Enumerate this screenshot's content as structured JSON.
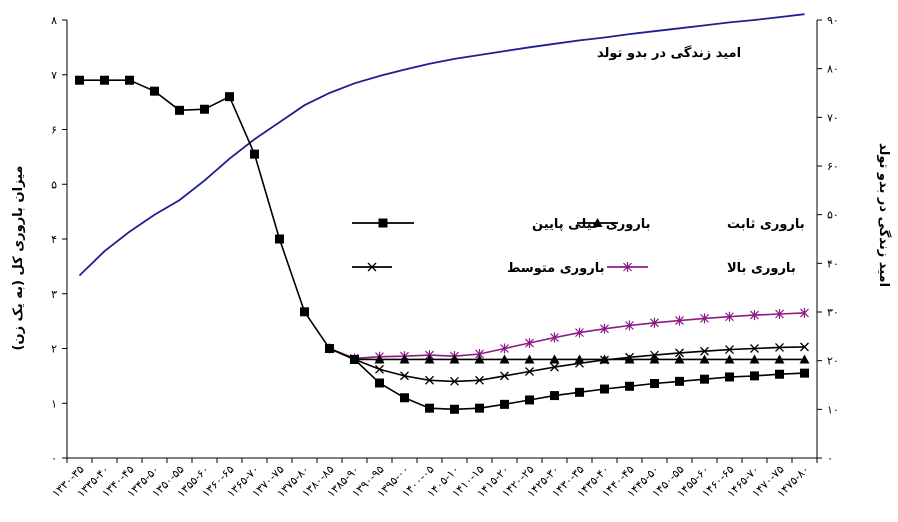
{
  "chart_data": {
    "type": "line",
    "x_categories": [
      "۱۳۳۰-۳۵",
      "۱۳۳۵-۴۰",
      "۱۳۴۰-۴۵",
      "۱۳۴۵-۵۰",
      "۱۳۵۰-۵۵",
      "۱۳۵۵-۶۰",
      "۱۳۶۰-۶۵",
      "۱۳۶۵-۷۰",
      "۱۳۷۰-۷۵",
      "۱۳۷۵-۸۰",
      "۱۳۸۰-۸۵",
      "۱۳۸۵-۹۰",
      "۱۳۹۰-۹۵",
      "۱۳۹۵-۰۰",
      "۱۴۰۰-۰۵",
      "۱۴۰۵-۱۰",
      "۱۴۱۰-۱۵",
      "۱۴۱۵-۲۰",
      "۱۴۲۰-۲۵",
      "۱۴۲۵-۳۰",
      "۱۴۳۰-۳۵",
      "۱۴۳۵-۴۰",
      "۱۴۴۰-۴۵",
      "۱۴۴۵-۵۰",
      "۱۴۵۰-۵۵",
      "۱۴۵۵-۶۰",
      "۱۴۶۰-۶۵",
      "۱۴۶۵-۷۰",
      "۱۴۷۰-۷۵",
      "۱۴۷۵-۸۰"
    ],
    "y_left": {
      "label": "میزان باروری کل (به یک زن)",
      "range": [
        0,
        8
      ],
      "ticks": [
        "۰",
        "۱",
        "۲",
        "۳",
        "۴",
        "۵",
        "۶",
        "۷",
        "۸"
      ]
    },
    "y_right": {
      "label": "امید زندگی در بدو تولد",
      "range": [
        0,
        90
      ],
      "ticks": [
        "۰",
        "۱۰",
        "۲۰",
        "۳۰",
        "۴۰",
        "۵۰",
        "۶۰",
        "۷۰",
        "۸۰",
        "۹۰"
      ]
    },
    "annotation": "امید زندگی در بدو تولد",
    "series": [
      {
        "name": "امید زندگی در بدو تولد",
        "axis": "right",
        "color": "#1f1f8f",
        "marker": "none",
        "start_index": 0,
        "values": [
          37.5,
          42.5,
          46.5,
          50,
          53,
          57,
          61.5,
          65.5,
          69,
          72.5,
          75,
          77,
          78.5,
          79.8,
          81,
          82,
          82.8,
          83.6,
          84.4,
          85.1,
          85.8,
          86.4,
          87.1,
          87.7,
          88.3,
          88.9,
          89.5,
          90,
          90.6,
          91.2
        ]
      },
      {
        "name": "باروری خیلی پایین",
        "axis": "left",
        "color": "#000000",
        "marker": "square",
        "start_index": 0,
        "values": [
          6.9,
          6.9,
          6.9,
          6.7,
          6.35,
          6.37,
          6.6,
          5.55,
          4.0,
          2.67,
          2.0,
          1.8,
          1.37,
          1.1,
          0.91,
          0.89,
          0.91,
          0.98,
          1.06,
          1.14,
          1.2,
          1.26,
          1.31,
          1.36,
          1.4,
          1.44,
          1.48,
          1.5,
          1.53,
          1.55
        ]
      },
      {
        "name": "باروری ثابت",
        "axis": "left",
        "color": "#000000",
        "marker": "triangle",
        "start_index": 10,
        "values": [
          2.0,
          1.8,
          1.8,
          1.8,
          1.8,
          1.8,
          1.8,
          1.8,
          1.8,
          1.8,
          1.8,
          1.8,
          1.8,
          1.8,
          1.8,
          1.8,
          1.8,
          1.8,
          1.8,
          1.8
        ]
      },
      {
        "name": "باروری متوسط",
        "axis": "left",
        "color": "#000000",
        "marker": "x",
        "start_index": 10,
        "values": [
          2.0,
          1.8,
          1.62,
          1.5,
          1.42,
          1.4,
          1.42,
          1.5,
          1.58,
          1.66,
          1.73,
          1.79,
          1.84,
          1.88,
          1.92,
          1.95,
          1.98,
          2.0,
          2.02,
          2.03
        ]
      },
      {
        "name": "باروری بالا",
        "axis": "left",
        "color": "#8b1a89",
        "marker": "star",
        "start_index": 10,
        "values": [
          2.0,
          1.82,
          1.85,
          1.86,
          1.88,
          1.86,
          1.9,
          2.0,
          2.1,
          2.2,
          2.29,
          2.36,
          2.42,
          2.47,
          2.51,
          2.55,
          2.58,
          2.61,
          2.63,
          2.65
        ]
      }
    ],
    "legend": [
      "باروری خیلی پایین",
      "باروری ثابت",
      "باروری متوسط",
      "باروری بالا"
    ],
    "grid": false
  }
}
